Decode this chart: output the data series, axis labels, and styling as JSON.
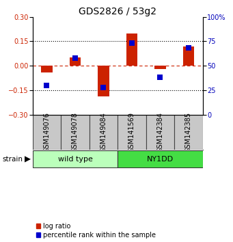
{
  "title": "GDS2826 / 53g2",
  "samples": [
    "GSM149076",
    "GSM149078",
    "GSM149084",
    "GSM141569",
    "GSM142384",
    "GSM142385"
  ],
  "log_ratio": [
    -0.04,
    0.05,
    -0.19,
    0.2,
    -0.02,
    0.12
  ],
  "percentile_rank": [
    30,
    58,
    28,
    73,
    38,
    68
  ],
  "groups": [
    {
      "label": "wild type",
      "start": 0,
      "end": 3,
      "color": "#bbffbb"
    },
    {
      "label": "NY1DD",
      "start": 3,
      "end": 6,
      "color": "#44dd44"
    }
  ],
  "ylim_left": [
    -0.3,
    0.3
  ],
  "ylim_right": [
    0,
    100
  ],
  "yticks_left": [
    -0.3,
    -0.15,
    0,
    0.15,
    0.3
  ],
  "yticks_right": [
    0,
    25,
    50,
    75,
    100
  ],
  "bar_color": "#cc2200",
  "dot_color": "#0000cc",
  "bar_width": 0.4,
  "dot_size": 40,
  "title_fontsize": 10,
  "tick_fontsize": 7,
  "label_fontsize": 7,
  "group_fontsize": 8,
  "legend_fontsize": 7,
  "strain_fontsize": 7.5,
  "bg_color_plot": "#ffffff",
  "bg_color_sample": "#c8c8c8"
}
